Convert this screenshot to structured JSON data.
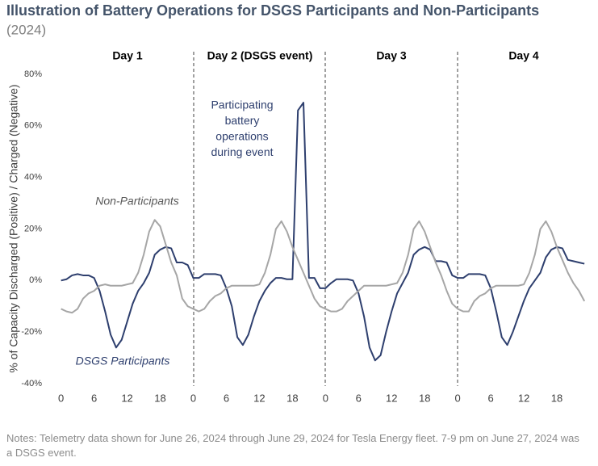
{
  "chart_data": {
    "type": "line",
    "title": "Illustration of Battery Operations for DSGS Participants and Non-Participants",
    "subtitle": "(2024)",
    "y_label": "% of Capacity Discharged (Positive) / Charged (Negative)",
    "notes": "Notes: Telemetry data shown for June 26, 2024 through June 29, 2024 for Tesla Energy fleet. 7-9 pm on June 27, 2024 was a DSGS event.",
    "day_labels": [
      "Day 1",
      "Day 2 (DSGS event)",
      "Day 3",
      "Day 4"
    ],
    "annotations": [
      {
        "text": "Non-Participants",
        "series": 1
      },
      {
        "text": "DSGS Participants",
        "series": 0
      },
      {
        "lines": [
          "Participating",
          "battery",
          "operations",
          "during event"
        ],
        "series": 0
      }
    ],
    "x": [
      0,
      1,
      2,
      3,
      4,
      5,
      6,
      7,
      8,
      9,
      10,
      11,
      12,
      13,
      14,
      15,
      16,
      17,
      18,
      19,
      20,
      21,
      22,
      23,
      24,
      25,
      26,
      27,
      28,
      29,
      30,
      31,
      32,
      33,
      34,
      35,
      36,
      37,
      38,
      39,
      40,
      41,
      42,
      43,
      44,
      45,
      46,
      47,
      48,
      49,
      50,
      51,
      52,
      53,
      54,
      55,
      56,
      57,
      58,
      59,
      60,
      61,
      62,
      63,
      64,
      65,
      66,
      67,
      68,
      69,
      70,
      71,
      72,
      73,
      74,
      75,
      76,
      77,
      78,
      79,
      80,
      81,
      82,
      83,
      84,
      85,
      86,
      87,
      88,
      89,
      90,
      91,
      92,
      93,
      94,
      95
    ],
    "series": [
      {
        "name": "DSGS Participants",
        "color": "#2e3f6e",
        "values": [
          0,
          0.5,
          2,
          2.5,
          2,
          2,
          1,
          -4,
          -12,
          -21,
          -26,
          -23,
          -16,
          -9,
          -4,
          -1,
          3,
          10,
          12,
          13,
          12.5,
          7,
          7,
          6,
          1,
          1,
          2.5,
          2.5,
          2.5,
          2,
          -3,
          -10,
          -22,
          -25,
          -21,
          -14,
          -8,
          -4,
          -1,
          1,
          1,
          0.5,
          0.5,
          66,
          69,
          1,
          1,
          -3,
          -3,
          -1,
          0.5,
          0.5,
          0.5,
          0,
          -5,
          -14,
          -26,
          -31,
          -29,
          -20,
          -12,
          -5,
          -1,
          3,
          10,
          12,
          13,
          12,
          7.5,
          7.5,
          7,
          2,
          1,
          1,
          2.5,
          2.5,
          2.5,
          2,
          -3,
          -12,
          -22,
          -25,
          -20,
          -14,
          -8,
          -3,
          0,
          3,
          9,
          12,
          13,
          12.5,
          8,
          7.5,
          7,
          6.5
        ]
      },
      {
        "name": "Non-Participants",
        "color": "#a6a6a6",
        "values": [
          -11,
          -12,
          -12.5,
          -11,
          -7,
          -5,
          -4,
          -2,
          -1.5,
          -2,
          -2,
          -2,
          -1.5,
          -1,
          3,
          10,
          19,
          23.5,
          21,
          14,
          7,
          2,
          -7,
          -10,
          -11,
          -12,
          -11,
          -8,
          -6,
          -5,
          -3,
          -2,
          -2,
          -2,
          -2,
          -2,
          -1.5,
          3,
          10,
          20,
          23,
          19,
          13,
          8,
          3,
          -2,
          -7,
          -10,
          -11,
          -12,
          -12,
          -11,
          -8,
          -6,
          -4,
          -2,
          -2,
          -2,
          -2,
          -2,
          -1.5,
          -1,
          3,
          10,
          20,
          23,
          19,
          13,
          7,
          2,
          -4,
          -9,
          -11,
          -12,
          -12,
          -8,
          -6,
          -5,
          -3,
          -2,
          -2,
          -2,
          -2,
          -2,
          -1.5,
          3,
          10,
          20,
          23,
          19,
          13,
          8,
          3,
          -1,
          -4,
          -8
        ]
      }
    ],
    "xlim": [
      -2,
      96
    ],
    "xticks": [
      0,
      6,
      12,
      18,
      {
        "value": 24,
        "label": "0"
      },
      {
        "value": 30,
        "label": "6"
      },
      {
        "value": 36,
        "label": "12"
      },
      {
        "value": 42,
        "label": "18"
      },
      {
        "value": 48,
        "label": "0"
      },
      {
        "value": 54,
        "label": "6"
      },
      {
        "value": 60,
        "label": "12"
      },
      {
        "value": 66,
        "label": "18"
      },
      {
        "value": 72,
        "label": "0"
      },
      {
        "value": 78,
        "label": "6"
      },
      {
        "value": 84,
        "label": "12"
      },
      {
        "value": 90,
        "label": "18"
      }
    ],
    "ylim": [
      -40,
      80
    ],
    "yticks": [
      {
        "value": -40,
        "label": "-40%"
      },
      {
        "value": -20,
        "label": "-20%"
      },
      {
        "value": 0,
        "label": "0%"
      },
      {
        "value": 20,
        "label": "20%"
      },
      {
        "value": 40,
        "label": "40%"
      },
      {
        "value": 60,
        "label": "60%"
      },
      {
        "value": 80,
        "label": "80%"
      }
    ],
    "grid": false
  }
}
